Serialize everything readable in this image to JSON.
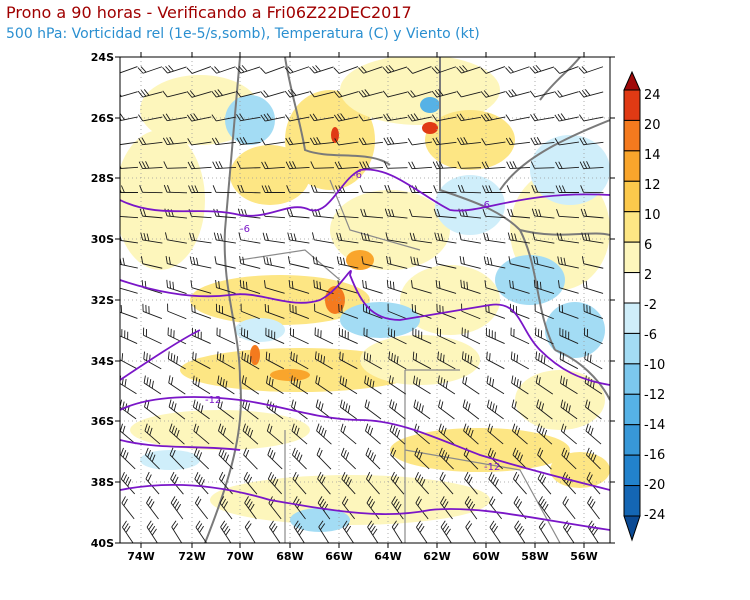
{
  "header": {
    "title": "Prono a 90 horas - Verificando a Fri06Z22DEC2017",
    "subtitle": "500 hPa: Vorticidad rel (1e-5/s,somb), Temperatura (C) y Viento (kt)"
  },
  "map": {
    "lat_labels": [
      "24S",
      "26S",
      "28S",
      "30S",
      "32S",
      "34S",
      "36S",
      "38S",
      "40S"
    ],
    "lon_labels": [
      "74W",
      "72W",
      "70W",
      "68W",
      "66W",
      "64W",
      "62W",
      "60W",
      "58W",
      "56W"
    ],
    "temperature_contour_labels": [
      "-6",
      "-6",
      "-6",
      "-12",
      "-12"
    ]
  },
  "colorbar": {
    "labels": [
      "24",
      "20",
      "14",
      "12",
      "10",
      "6",
      "2",
      "-2",
      "-6",
      "-10",
      "-12",
      "-14",
      "-16",
      "-20",
      "-24"
    ],
    "colors": [
      "#a00a0a",
      "#e03a14",
      "#f47a1e",
      "#f9a52c",
      "#fcc94c",
      "#fde684",
      "#fdf6bc",
      "#ffffff",
      "#cfeefa",
      "#a3dcf4",
      "#7cc8ee",
      "#56b2e6",
      "#3898d8",
      "#2282cc",
      "#1466b4",
      "#0b4a94"
    ]
  },
  "colors": {
    "temperature_contour": "#7a16c8",
    "borders": "#7a7a7a",
    "grid": "#999999"
  }
}
